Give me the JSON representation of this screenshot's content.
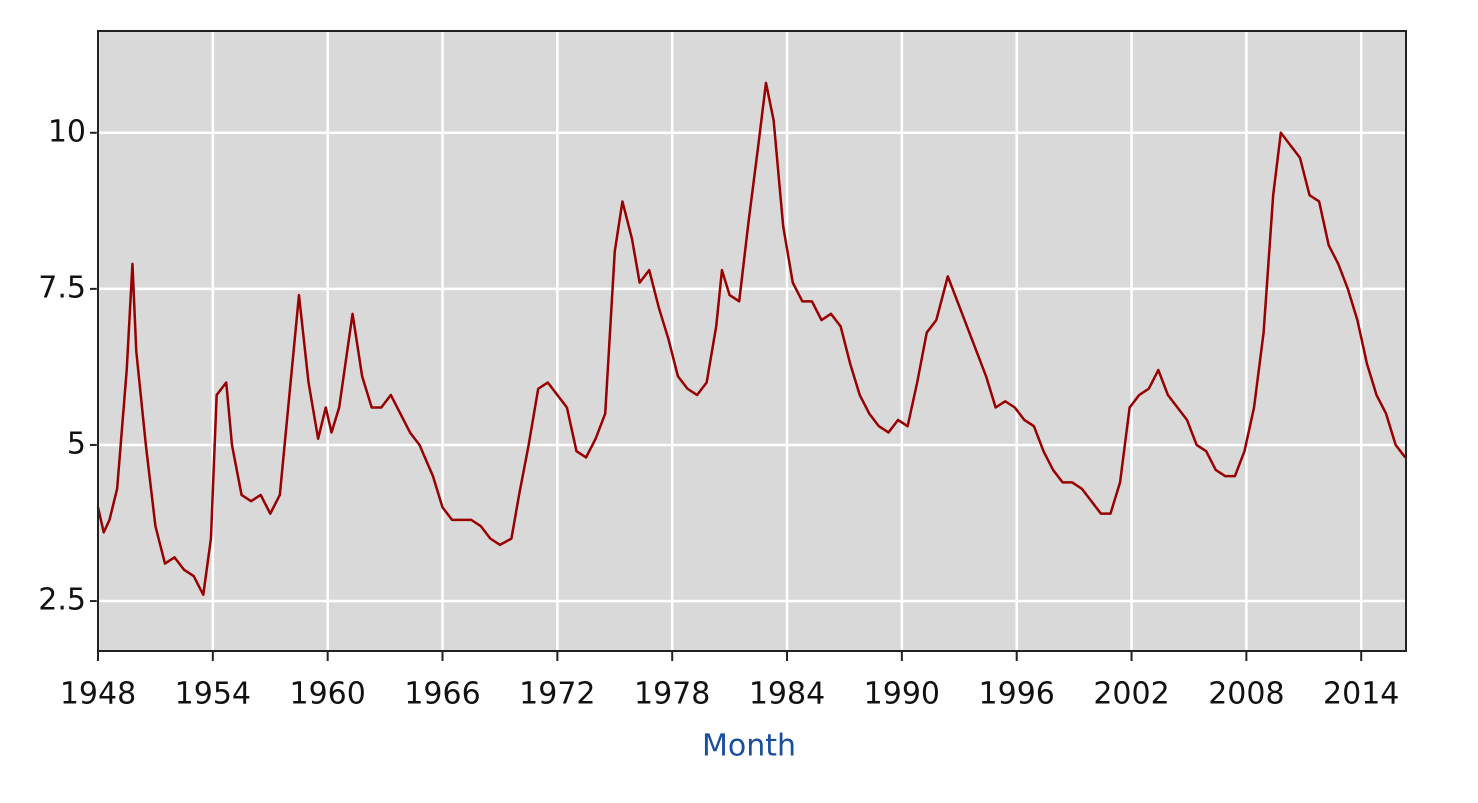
{
  "chart_data": {
    "type": "line",
    "x_label": "Month",
    "x": [
      1948.0,
      1948.3,
      1948.6,
      1949.0,
      1949.5,
      1949.8,
      1950.0,
      1950.5,
      1951.0,
      1951.5,
      1952.0,
      1952.5,
      1953.0,
      1953.5,
      1953.9,
      1954.2,
      1954.7,
      1955.0,
      1955.5,
      1956.0,
      1956.5,
      1957.0,
      1957.5,
      1958.0,
      1958.5,
      1959.0,
      1959.5,
      1959.9,
      1960.2,
      1960.6,
      1961.3,
      1961.8,
      1962.3,
      1962.8,
      1963.3,
      1963.8,
      1964.3,
      1964.8,
      1965.5,
      1966.0,
      1966.5,
      1967.0,
      1967.5,
      1968.0,
      1968.5,
      1969.0,
      1969.6,
      1970.0,
      1970.5,
      1971.0,
      1971.5,
      1972.0,
      1972.5,
      1973.0,
      1973.5,
      1974.0,
      1974.5,
      1975.0,
      1975.4,
      1975.9,
      1976.3,
      1976.8,
      1977.3,
      1977.8,
      1978.3,
      1978.8,
      1979.3,
      1979.8,
      1980.3,
      1980.6,
      1981.0,
      1981.5,
      1982.0,
      1982.5,
      1982.9,
      1983.3,
      1983.8,
      1984.3,
      1984.8,
      1985.3,
      1985.8,
      1986.3,
      1986.8,
      1987.3,
      1987.8,
      1988.3,
      1988.8,
      1989.3,
      1989.8,
      1990.3,
      1990.8,
      1991.3,
      1991.8,
      1992.4,
      1992.9,
      1993.4,
      1993.9,
      1994.4,
      1994.9,
      1995.4,
      1995.9,
      1996.4,
      1996.9,
      1997.4,
      1997.9,
      1998.4,
      1998.9,
      1999.4,
      1999.9,
      2000.4,
      2000.9,
      2001.4,
      2001.9,
      2002.4,
      2002.9,
      2003.4,
      2003.9,
      2004.4,
      2004.9,
      2005.4,
      2005.9,
      2006.4,
      2006.9,
      2007.4,
      2007.9,
      2008.4,
      2008.9,
      2009.4,
      2009.8,
      2010.3,
      2010.8,
      2011.3,
      2011.8,
      2012.3,
      2012.8,
      2013.3,
      2013.8,
      2014.3,
      2014.8,
      2015.3,
      2015.8,
      2016.3
    ],
    "series": [
      {
        "color": "#990000",
        "values": [
          4.0,
          3.6,
          3.8,
          4.3,
          6.2,
          7.9,
          6.5,
          5.0,
          3.7,
          3.1,
          3.2,
          3.0,
          2.9,
          2.6,
          3.5,
          5.8,
          6.0,
          5.0,
          4.2,
          4.1,
          4.2,
          3.9,
          4.2,
          5.8,
          7.4,
          6.0,
          5.1,
          5.6,
          5.2,
          5.6,
          7.1,
          6.1,
          5.6,
          5.6,
          5.8,
          5.5,
          5.2,
          5.0,
          4.5,
          4.0,
          3.8,
          3.8,
          3.8,
          3.7,
          3.5,
          3.4,
          3.5,
          4.2,
          5.0,
          5.9,
          6.0,
          5.8,
          5.6,
          4.9,
          4.8,
          5.1,
          5.5,
          8.1,
          8.9,
          8.3,
          7.6,
          7.8,
          7.2,
          6.7,
          6.1,
          5.9,
          5.8,
          6.0,
          6.9,
          7.8,
          7.4,
          7.3,
          8.6,
          9.8,
          10.8,
          10.2,
          8.5,
          7.6,
          7.3,
          7.3,
          7.0,
          7.1,
          6.9,
          6.3,
          5.8,
          5.5,
          5.3,
          5.2,
          5.4,
          5.3,
          6.0,
          6.8,
          7.0,
          7.7,
          7.3,
          6.9,
          6.5,
          6.1,
          5.6,
          5.7,
          5.6,
          5.4,
          5.3,
          4.9,
          4.6,
          4.4,
          4.4,
          4.3,
          4.1,
          3.9,
          3.9,
          4.4,
          5.6,
          5.8,
          5.9,
          6.2,
          5.8,
          5.6,
          5.4,
          5.0,
          4.9,
          4.6,
          4.5,
          4.5,
          4.9,
          5.6,
          6.8,
          9.0,
          10.0,
          9.8,
          9.6,
          9.0,
          8.9,
          8.2,
          7.9,
          7.5,
          7.0,
          6.3,
          5.8,
          5.5,
          5.0,
          4.8
        ]
      }
    ],
    "xlim": [
      1948,
      2016.34
    ],
    "xticks": [
      1948,
      1954,
      1960,
      1966,
      1972,
      1978,
      1984,
      1990,
      1996,
      2002,
      2008,
      2014
    ],
    "ylim": [
      1.7,
      11.63
    ],
    "yticks": [
      2.5,
      5,
      7.5,
      10
    ],
    "grid": true,
    "background": "#d9d9d9"
  }
}
